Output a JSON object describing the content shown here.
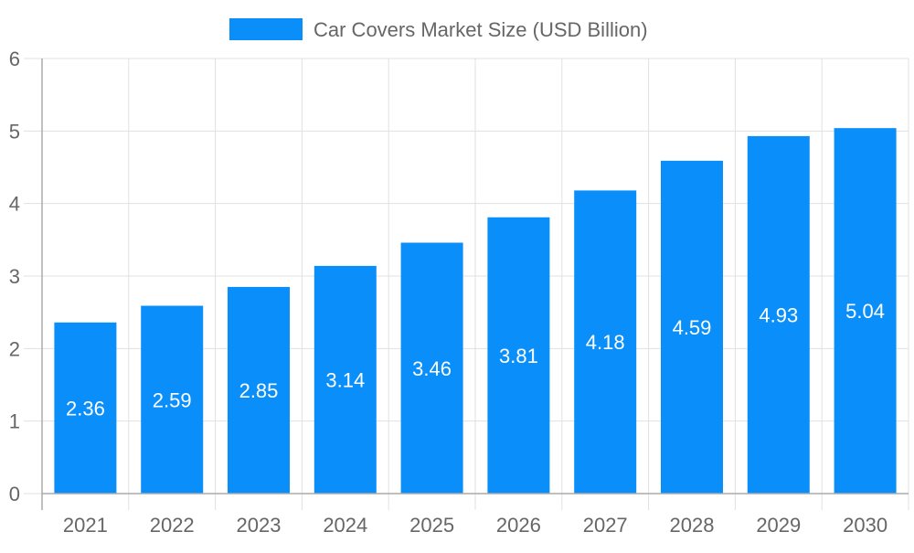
{
  "chart_data": {
    "type": "bar",
    "title": "",
    "xlabel": "",
    "ylabel": "",
    "categories": [
      "2021",
      "2022",
      "2023",
      "2024",
      "2025",
      "2026",
      "2027",
      "2028",
      "2029",
      "2030"
    ],
    "series": [
      {
        "name": "Car Covers Market Size (USD Billion)",
        "values": [
          2.36,
          2.59,
          2.85,
          3.14,
          3.46,
          3.81,
          4.18,
          4.59,
          4.93,
          5.04
        ],
        "color": "#0a8ffa"
      }
    ],
    "ylim": [
      0,
      6
    ],
    "yticks": [
      "0",
      "1",
      "2",
      "3",
      "4",
      "5",
      "6"
    ],
    "grid": true,
    "legend": "top-center",
    "data_labels": [
      "2.36",
      "2.59",
      "2.85",
      "3.14",
      "3.46",
      "3.81",
      "4.18",
      "4.59",
      "4.93",
      "5.04"
    ]
  }
}
